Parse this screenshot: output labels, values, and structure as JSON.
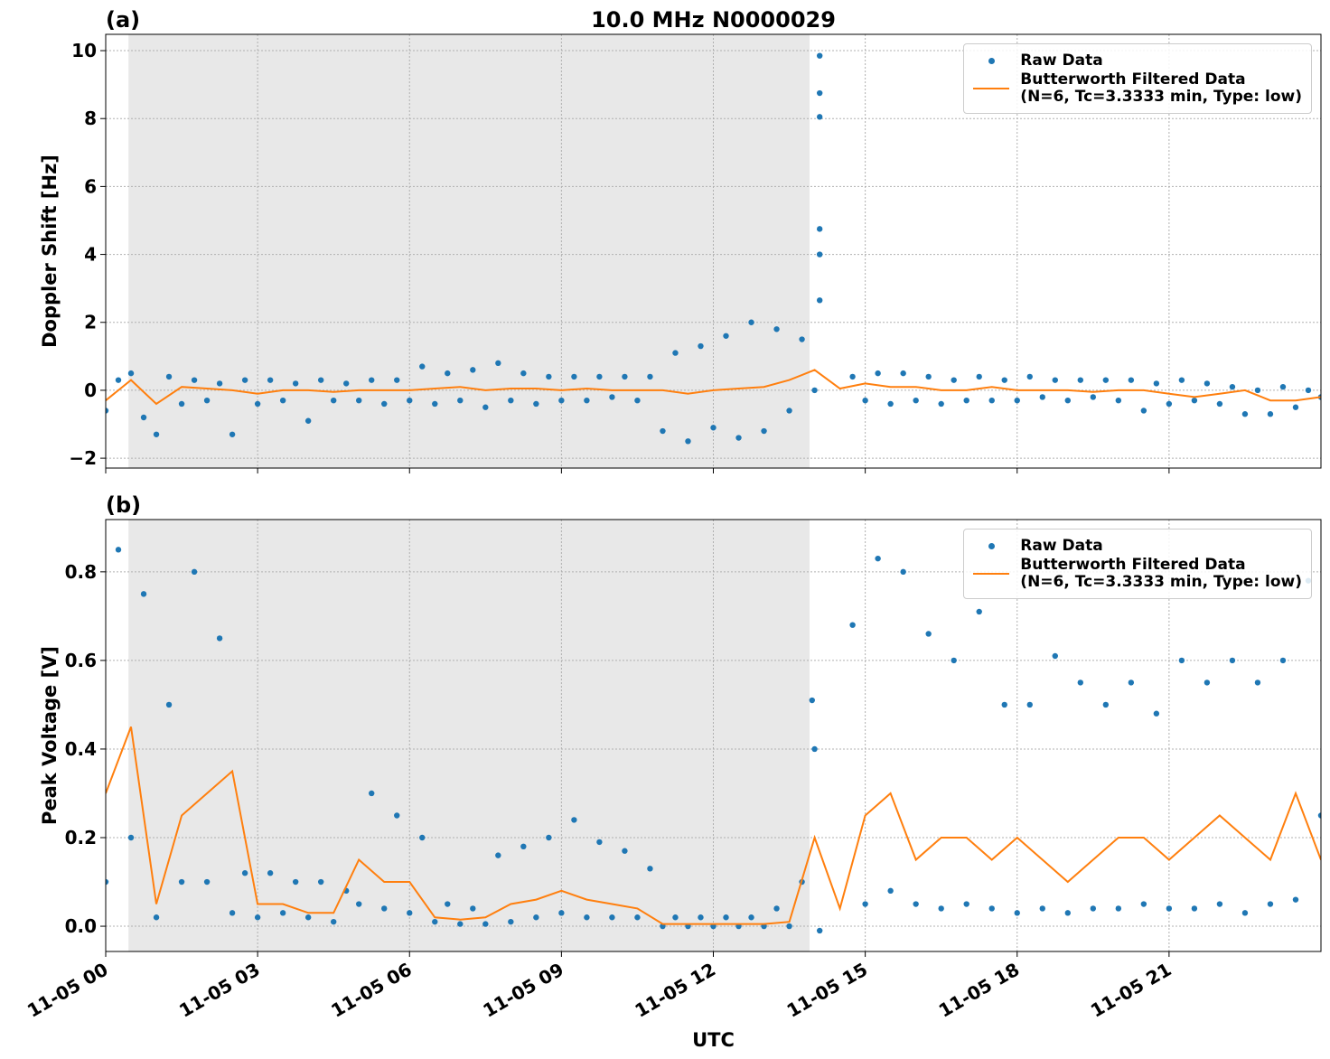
{
  "chart_data": [
    {
      "type": "line",
      "panel_label": "(a)",
      "title": "10.0 MHz N0000029",
      "ylabel": "Doppler Shift [Hz]",
      "xlim": [
        0,
        24
      ],
      "ylim": [
        -2.29,
        10.48
      ],
      "grid": true,
      "legend": "upper right",
      "xticks": [
        0,
        3,
        6,
        9,
        12,
        15,
        18,
        21
      ],
      "yticks": [
        {
          "value": -2,
          "label": "−2"
        },
        0,
        2,
        4,
        6,
        8,
        10
      ],
      "shaded_span": [
        0.45,
        13.9
      ],
      "shade_color": "#e8e8e8",
      "x": [
        0,
        0.5,
        1,
        1.5,
        2,
        2.5,
        3,
        3.5,
        4,
        4.5,
        5,
        5.5,
        6,
        6.5,
        7,
        7.5,
        8,
        8.5,
        9,
        9.5,
        10,
        10.5,
        11,
        11.5,
        12,
        12.5,
        13,
        13.5,
        14,
        14.5,
        15,
        15.5,
        16,
        16.5,
        17,
        17.5,
        18,
        18.5,
        19,
        19.5,
        20,
        20.5,
        21,
        21.5,
        22,
        22.5,
        23,
        23.5,
        24
      ],
      "series": [
        {
          "name": "Raw Data",
          "style": "points",
          "color": "#1f77b4",
          "x": [
            0,
            0.25,
            0.5,
            0.75,
            1,
            1.25,
            1.5,
            1.75,
            2,
            2.25,
            2.5,
            2.75,
            3,
            3.25,
            3.5,
            3.75,
            4,
            4.25,
            4.5,
            4.75,
            5,
            5.25,
            5.5,
            5.75,
            6,
            6.25,
            6.5,
            6.75,
            7,
            7.25,
            7.5,
            7.75,
            8,
            8.25,
            8.5,
            8.75,
            9,
            9.25,
            9.5,
            9.75,
            10,
            10.25,
            10.5,
            10.75,
            11,
            11.25,
            11.5,
            11.75,
            12,
            12.25,
            12.5,
            12.75,
            13,
            13.25,
            13.5,
            13.75,
            14,
            14.25,
            14.5,
            14.75,
            15,
            15.25,
            15.5,
            15.75,
            16,
            16.25,
            16.5,
            16.75,
            17,
            17.25,
            17.5,
            17.75,
            18,
            18.25,
            18.5,
            18.75,
            19,
            19.25,
            19.5,
            19.75,
            20,
            20.25,
            20.5,
            20.75,
            21,
            21.25,
            21.5,
            21.75,
            22,
            22.25,
            22.5,
            22.75,
            23,
            23.25,
            23.5,
            23.75,
            24,
            14.1,
            14.1,
            14.1,
            14.1,
            14.1,
            14.1
          ],
          "values": [
            -0.6,
            0.3,
            0.5,
            -0.8,
            -1.3,
            0.4,
            -0.4,
            0.3,
            -0.3,
            0.2,
            -1.3,
            0.3,
            -0.4,
            0.3,
            -0.3,
            0.2,
            -0.9,
            0.3,
            -0.3,
            0.2,
            -0.3,
            0.3,
            -0.4,
            0.3,
            -0.3,
            0.7,
            -0.4,
            0.5,
            -0.3,
            0.6,
            -0.5,
            0.8,
            -0.3,
            0.5,
            -0.4,
            0.4,
            -0.3,
            0.4,
            -0.3,
            0.4,
            -0.2,
            0.4,
            -0.3,
            0.4,
            -1.2,
            1.1,
            -1.5,
            1.3,
            -1.1,
            1.6,
            -1.4,
            2.0,
            -1.2,
            1.8,
            -0.6,
            1.5,
            0.0,
            null,
            null,
            0.4,
            -0.3,
            0.5,
            -0.4,
            0.5,
            -0.3,
            0.4,
            -0.4,
            0.3,
            -0.3,
            0.4,
            -0.3,
            0.3,
            -0.3,
            0.4,
            -0.2,
            0.3,
            -0.3,
            0.3,
            -0.2,
            0.3,
            -0.3,
            0.3,
            -0.6,
            0.2,
            -0.4,
            0.3,
            -0.3,
            0.2,
            -0.4,
            0.1,
            -0.7,
            0.0,
            -0.7,
            0.1,
            -0.5,
            0.0,
            -0.2,
            9.85,
            8.75,
            8.05,
            4.75,
            4.0,
            2.65
          ]
        },
        {
          "name": "Butterworth Filtered Data\n(N=6, Tc=3.3333 min, Type: low)",
          "style": "line",
          "color": "#ff7f0e",
          "values": [
            -0.3,
            0.3,
            -0.4,
            0.1,
            0.05,
            0,
            -0.1,
            0,
            0,
            -0.05,
            0,
            0,
            0,
            0.05,
            0.1,
            0,
            0.05,
            0.05,
            0,
            0.05,
            0,
            0,
            0,
            -0.1,
            0,
            0.05,
            0.1,
            0.3,
            0.6,
            0.05,
            0.2,
            0.1,
            0.1,
            0,
            0,
            0.1,
            0,
            0,
            0,
            -0.05,
            0,
            0,
            -0.1,
            -0.2,
            -0.1,
            0,
            -0.3,
            -0.3,
            -0.2
          ]
        }
      ]
    },
    {
      "type": "line",
      "panel_label": "(b)",
      "ylabel": "Peak Voltage [V]",
      "xlabel": "UTC",
      "xlim": [
        0,
        24
      ],
      "ylim": [
        -0.057,
        0.918
      ],
      "grid": true,
      "legend": "upper right",
      "xticks": [
        {
          "value": 0,
          "label": "11-05 00"
        },
        {
          "value": 3,
          "label": "11-05 03"
        },
        {
          "value": 6,
          "label": "11-05 06"
        },
        {
          "value": 9,
          "label": "11-05 09"
        },
        {
          "value": 12,
          "label": "11-05 12"
        },
        {
          "value": 15,
          "label": "11-05 15"
        },
        {
          "value": 18,
          "label": "11-05 18"
        },
        {
          "value": 21,
          "label": "11-05 21"
        }
      ],
      "yticks": [
        {
          "value": 0,
          "label": "0.0"
        },
        0.2,
        0.4,
        0.6,
        0.8
      ],
      "shaded_span": [
        0.45,
        13.9
      ],
      "shade_color": "#e8e8e8",
      "x": [
        0,
        0.5,
        1,
        1.5,
        2,
        2.5,
        3,
        3.5,
        4,
        4.5,
        5,
        5.5,
        6,
        6.5,
        7,
        7.5,
        8,
        8.5,
        9,
        9.5,
        10,
        10.5,
        11,
        11.5,
        12,
        12.5,
        13,
        13.5,
        14,
        14.5,
        15,
        15.5,
        16,
        16.5,
        17,
        17.5,
        18,
        18.5,
        19,
        19.5,
        20,
        20.5,
        21,
        21.5,
        22,
        22.5,
        23,
        23.5,
        24
      ],
      "series": [
        {
          "name": "Raw Data",
          "style": "points",
          "color": "#1f77b4",
          "x": [
            0,
            0.25,
            0.5,
            0.75,
            1,
            1.25,
            1.5,
            1.75,
            2,
            2.25,
            2.5,
            2.75,
            3,
            3.25,
            3.5,
            3.75,
            4,
            4.25,
            4.5,
            4.75,
            5,
            5.25,
            5.5,
            5.75,
            6,
            6.25,
            6.5,
            6.75,
            7,
            7.25,
            7.5,
            7.75,
            8,
            8.25,
            8.5,
            8.75,
            9,
            9.25,
            9.5,
            9.75,
            10,
            10.25,
            10.5,
            10.75,
            11,
            11.25,
            11.5,
            11.75,
            12,
            12.25,
            12.5,
            12.75,
            13,
            13.25,
            13.5,
            13.75,
            14,
            14.25,
            14.5,
            14.75,
            15,
            15.25,
            15.5,
            15.75,
            16,
            16.25,
            16.5,
            16.75,
            17,
            17.25,
            17.5,
            17.75,
            18,
            18.25,
            18.5,
            18.75,
            19,
            19.25,
            19.5,
            19.75,
            20,
            20.25,
            20.5,
            20.75,
            21,
            21.25,
            21.5,
            21.75,
            22,
            22.25,
            22.5,
            22.75,
            23,
            23.25,
            23.5,
            23.75,
            24,
            13.95,
            14.1
          ],
          "values": [
            0.1,
            0.85,
            0.2,
            0.75,
            0.02,
            0.5,
            0.1,
            0.8,
            0.1,
            0.65,
            0.03,
            0.12,
            0.02,
            0.12,
            0.03,
            0.1,
            0.02,
            0.1,
            0.01,
            0.08,
            0.05,
            0.3,
            0.04,
            0.25,
            0.03,
            0.2,
            0.01,
            0.05,
            0.005,
            0.04,
            0.005,
            0.16,
            0.01,
            0.18,
            0.02,
            0.2,
            0.03,
            0.24,
            0.02,
            0.19,
            0.02,
            0.17,
            0.02,
            0.13,
            0.0,
            0.02,
            0.0,
            0.02,
            0.0,
            0.02,
            0.0,
            0.02,
            0.0,
            0.04,
            0.0,
            0.1,
            0.4,
            null,
            null,
            0.68,
            0.05,
            0.83,
            0.08,
            0.8,
            0.05,
            0.66,
            0.04,
            0.6,
            0.05,
            0.71,
            0.04,
            0.5,
            0.03,
            0.5,
            0.04,
            0.61,
            0.03,
            0.55,
            0.04,
            0.5,
            0.04,
            0.55,
            0.05,
            0.48,
            0.04,
            0.6,
            0.04,
            0.55,
            0.05,
            0.6,
            0.03,
            0.55,
            0.05,
            0.6,
            0.06,
            0.78,
            0.25,
            0.51,
            -0.01
          ]
        },
        {
          "name": "Butterworth Filtered Data\n(N=6, Tc=3.3333 min, Type: low)",
          "style": "line",
          "color": "#ff7f0e",
          "values": [
            0.3,
            0.45,
            0.05,
            0.25,
            0.3,
            0.35,
            0.05,
            0.05,
            0.03,
            0.03,
            0.15,
            0.1,
            0.1,
            0.02,
            0.015,
            0.02,
            0.05,
            0.06,
            0.08,
            0.06,
            0.05,
            0.04,
            0.005,
            0.005,
            0.005,
            0.005,
            0.005,
            0.01,
            0.2,
            0.04,
            0.25,
            0.3,
            0.15,
            0.2,
            0.2,
            0.15,
            0.2,
            0.15,
            0.1,
            0.15,
            0.2,
            0.2,
            0.15,
            0.2,
            0.25,
            0.2,
            0.15,
            0.3,
            0.15
          ]
        }
      ]
    }
  ]
}
